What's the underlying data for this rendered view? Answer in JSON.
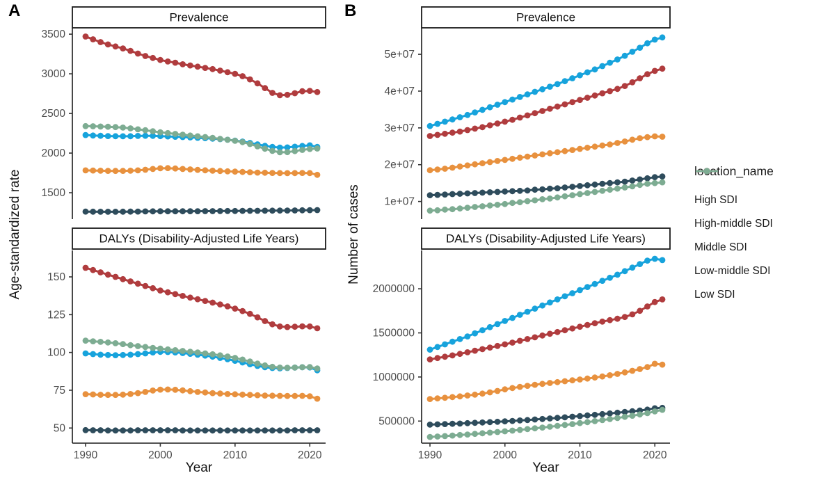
{
  "labels": {
    "panel_a": "A",
    "panel_b": "B"
  },
  "axes": {
    "a_y_title": "Age-standardized rate",
    "b_y_title": "Number of cases"
  },
  "legend": {
    "title": "location_name",
    "items": [
      {
        "label": "High SDI",
        "color": "#2e4c5c"
      },
      {
        "label": "High-middle SDI",
        "color": "#e8913e"
      },
      {
        "label": "Middle SDI",
        "color": "#17a3dc"
      },
      {
        "label": "Low-middle SDI",
        "color": "#b03c3e"
      },
      {
        "label": "Low SDI",
        "color": "#7dac92"
      }
    ]
  },
  "chart_data": {
    "type": "line",
    "x": {
      "label": "Year",
      "years": [
        1990,
        1991,
        1992,
        1993,
        1994,
        1995,
        1996,
        1997,
        1998,
        1999,
        2000,
        2001,
        2002,
        2003,
        2004,
        2005,
        2006,
        2007,
        2008,
        2009,
        2010,
        2011,
        2012,
        2013,
        2014,
        2015,
        2016,
        2017,
        2018,
        2019,
        2020,
        2021
      ],
      "ticks": [
        1990,
        2000,
        2010,
        2020
      ]
    },
    "panels": [
      {
        "id": "a-prevalence",
        "column": "A",
        "row": 0,
        "strip": "Prevalence",
        "ylabel": "Age-standardized rate",
        "ylim": [
          1167,
          3580
        ],
        "yticks": [
          {
            "v": 1500,
            "label": "1500"
          },
          {
            "v": 2000,
            "label": "2000"
          },
          {
            "v": 2500,
            "label": "2500"
          },
          {
            "v": 3000,
            "label": "3000"
          },
          {
            "v": 3500,
            "label": "3500"
          }
        ],
        "series": [
          {
            "name": "High SDI",
            "values": [
              1262,
              1261,
              1260,
              1260,
              1260,
              1261,
              1262,
              1263,
              1264,
              1265,
              1266,
              1266,
              1266,
              1266,
              1267,
              1267,
              1268,
              1268,
              1269,
              1270,
              1270,
              1271,
              1272,
              1272,
              1273,
              1274,
              1275,
              1276,
              1277,
              1278,
              1280,
              1281
            ]
          },
          {
            "name": "High-middle SDI",
            "values": [
              1782,
              1780,
              1778,
              1776,
              1775,
              1776,
              1778,
              1782,
              1790,
              1800,
              1808,
              1810,
              1806,
              1800,
              1794,
              1788,
              1783,
              1778,
              1774,
              1770,
              1766,
              1762,
              1758,
              1754,
              1752,
              1750,
              1748,
              1747,
              1748,
              1750,
              1748,
              1726
            ]
          },
          {
            "name": "Middle SDI",
            "values": [
              2228,
              2222,
              2218,
              2215,
              2213,
              2212,
              2213,
              2216,
              2218,
              2217,
              2214,
              2210,
              2206,
              2202,
              2198,
              2193,
              2188,
              2182,
              2176,
              2168,
              2158,
              2145,
              2128,
              2110,
              2092,
              2078,
              2070,
              2072,
              2080,
              2090,
              2098,
              2078
            ]
          },
          {
            "name": "Low-middle SDI",
            "values": [
              3470,
              3435,
              3400,
              3370,
              3345,
              3320,
              3290,
              3255,
              3225,
              3200,
              3175,
              3155,
              3140,
              3120,
              3105,
              3090,
              3075,
              3060,
              3040,
              3020,
              3000,
              2970,
              2930,
              2880,
              2820,
              2760,
              2730,
              2735,
              2755,
              2780,
              2785,
              2770
            ]
          },
          {
            "name": "Low SDI",
            "values": [
              2340,
              2338,
              2335,
              2332,
              2328,
              2322,
              2312,
              2300,
              2288,
              2275,
              2262,
              2252,
              2242,
              2232,
              2222,
              2212,
              2202,
              2192,
              2180,
              2168,
              2155,
              2138,
              2115,
              2085,
              2055,
              2028,
              2010,
              2012,
              2025,
              2040,
              2052,
              2058
            ]
          }
        ]
      },
      {
        "id": "a-dalys",
        "column": "A",
        "row": 1,
        "strip": "DALYs (Disability-Adjusted Life Years)",
        "ylabel": "Age-standardized rate",
        "ylim": [
          40,
          167.5
        ],
        "yticks": [
          {
            "v": 50,
            "label": "50"
          },
          {
            "v": 75,
            "label": "75"
          },
          {
            "v": 100,
            "label": "100"
          },
          {
            "v": 125,
            "label": "125"
          },
          {
            "v": 150,
            "label": "150"
          }
        ],
        "series": [
          {
            "name": "High SDI",
            "values": [
              48.6,
              48.5,
              48.5,
              48.4,
              48.4,
              48.4,
              48.4,
              48.5,
              48.5,
              48.5,
              48.5,
              48.5,
              48.5,
              48.4,
              48.4,
              48.4,
              48.4,
              48.4,
              48.4,
              48.4,
              48.4,
              48.4,
              48.4,
              48.4,
              48.4,
              48.4,
              48.4,
              48.4,
              48.5,
              48.5,
              48.5,
              48.5
            ]
          },
          {
            "name": "High-middle SDI",
            "values": [
              72.4,
              72.2,
              72.0,
              71.9,
              71.9,
              72.1,
              72.5,
              73.1,
              73.9,
              74.8,
              75.4,
              75.5,
              75.3,
              74.9,
              74.4,
              73.9,
              73.5,
              73.1,
              72.8,
              72.5,
              72.3,
              72.1,
              71.9,
              71.7,
              71.5,
              71.4,
              71.3,
              71.2,
              71.2,
              71.3,
              71.0,
              69.4
            ]
          },
          {
            "name": "Middle SDI",
            "values": [
              99.4,
              98.9,
              98.5,
              98.3,
              98.2,
              98.3,
              98.5,
              98.9,
              99.4,
              100.0,
              100.4,
              100.3,
              100.0,
              99.6,
              99.1,
              98.5,
              97.9,
              97.2,
              96.4,
              95.5,
              94.5,
              93.4,
              92.2,
              91.1,
              90.2,
              89.7,
              89.5,
              89.7,
              90.0,
              90.2,
              90.1,
              88.2
            ]
          },
          {
            "name": "Low-middle SDI",
            "values": [
              156.0,
              154.5,
              153.0,
              151.5,
              150.0,
              148.5,
              147.0,
              145.5,
              144.0,
              142.5,
              141.0,
              139.8,
              138.6,
              137.4,
              136.3,
              135.2,
              134.1,
              133.0,
              131.8,
              130.5,
              129.0,
              127.4,
              125.5,
              123.2,
              120.8,
              118.6,
              117.2,
              116.8,
              117.0,
              117.3,
              117.2,
              116.0
            ]
          },
          {
            "name": "Low SDI",
            "values": [
              107.8,
              107.4,
              107.0,
              106.6,
              106.1,
              105.5,
              104.8,
              104.2,
              103.6,
              103.0,
              102.5,
              102.0,
              101.5,
              101.0,
              100.5,
              100.0,
              99.4,
              98.8,
              98.1,
              97.3,
              96.4,
              95.3,
              94.0,
              92.6,
              91.4,
              90.5,
              90.0,
              89.9,
              90.0,
              90.2,
              90.3,
              89.4
            ]
          }
        ]
      },
      {
        "id": "b-prevalence",
        "column": "B",
        "row": 0,
        "strip": "Prevalence",
        "ylabel": "Number of cases",
        "ylim": [
          5200000,
          57200000
        ],
        "yticks": [
          {
            "v": 10000000,
            "label": "1e+07"
          },
          {
            "v": 20000000,
            "label": "2e+07"
          },
          {
            "v": 30000000,
            "label": "3e+07"
          },
          {
            "v": 40000000,
            "label": "4e+07"
          },
          {
            "v": 50000000,
            "label": "5e+07"
          }
        ],
        "series": [
          {
            "name": "High SDI",
            "values": [
              11700000,
              11800000,
              11900000,
              12000000,
              12100000,
              12200000,
              12300000,
              12400000,
              12500000,
              12600000,
              12700000,
              12800000,
              12900000,
              13000000,
              13200000,
              13300000,
              13500000,
              13600000,
              13800000,
              14000000,
              14200000,
              14400000,
              14600000,
              14800000,
              15000000,
              15200000,
              15400000,
              15700000,
              16000000,
              16300000,
              16600000,
              16800000
            ]
          },
          {
            "name": "High-middle SDI",
            "values": [
              18500000,
              18700000,
              18900000,
              19200000,
              19500000,
              19800000,
              20100000,
              20400000,
              20700000,
              21000000,
              21300000,
              21600000,
              21900000,
              22200000,
              22500000,
              22800000,
              23100000,
              23400000,
              23700000,
              24000000,
              24300000,
              24600000,
              24900000,
              25200000,
              25500000,
              25900000,
              26300000,
              26800000,
              27200000,
              27500000,
              27700000,
              27600000
            ]
          },
          {
            "name": "Middle SDI",
            "values": [
              30500000,
              31100000,
              31700000,
              32300000,
              32900000,
              33500000,
              34200000,
              34900000,
              35600000,
              36300000,
              37000000,
              37700000,
              38400000,
              39100000,
              39800000,
              40500000,
              41200000,
              41900000,
              42700000,
              43500000,
              44300000,
              45100000,
              45900000,
              46800000,
              47700000,
              48600000,
              49600000,
              50700000,
              51800000,
              53000000,
              54000000,
              54600000
            ]
          },
          {
            "name": "Low-middle SDI",
            "values": [
              27800000,
              28100000,
              28400000,
              28700000,
              29000000,
              29400000,
              29800000,
              30200000,
              30700000,
              31200000,
              31700000,
              32200000,
              32800000,
              33400000,
              34000000,
              34600000,
              35200000,
              35800000,
              36400000,
              37000000,
              37600000,
              38200000,
              38800000,
              39400000,
              40000000,
              40600000,
              41400000,
              42400000,
              43500000,
              44600000,
              45500000,
              46100000
            ]
          },
          {
            "name": "Low SDI",
            "values": [
              7500000,
              7600000,
              7800000,
              7900000,
              8100000,
              8300000,
              8500000,
              8700000,
              8900000,
              9100000,
              9300000,
              9600000,
              9800000,
              10100000,
              10300000,
              10600000,
              10800000,
              11100000,
              11400000,
              11700000,
              12000000,
              12300000,
              12600000,
              12900000,
              13200000,
              13500000,
              13800000,
              14100000,
              14500000,
              14800000,
              15000000,
              15200000
            ]
          }
        ]
      },
      {
        "id": "b-dalys",
        "column": "B",
        "row": 1,
        "strip": "DALYs (Disability-Adjusted Life Years)",
        "ylabel": "Number of cases",
        "ylim": [
          250000,
          2435000
        ],
        "yticks": [
          {
            "v": 500000,
            "label": "500000"
          },
          {
            "v": 1000000,
            "label": "1000000"
          },
          {
            "v": 1500000,
            "label": "1500000"
          },
          {
            "v": 2000000,
            "label": "2000000"
          }
        ],
        "series": [
          {
            "name": "High SDI",
            "values": [
              460000,
              463000,
              466000,
              469000,
              472000,
              476000,
              480000,
              484000,
              488000,
              492000,
              497000,
              502000,
              507000,
              512000,
              518000,
              524000,
              530000,
              536000,
              543000,
              550000,
              557000,
              564000,
              571000,
              579000,
              587000,
              595000,
              603000,
              611000,
              620000,
              630000,
              645000,
              650000
            ]
          },
          {
            "name": "High-middle SDI",
            "values": [
              750000,
              757000,
              764000,
              772000,
              780000,
              790000,
              800000,
              812000,
              826000,
              842000,
              860000,
              875000,
              888000,
              900000,
              912000,
              922000,
              932000,
              942000,
              952000,
              962000,
              972000,
              982000,
              994000,
              1006000,
              1020000,
              1035000,
              1052000,
              1070000,
              1090000,
              1112000,
              1150000,
              1140000
            ]
          },
          {
            "name": "Middle SDI",
            "values": [
              1310000,
              1340000,
              1370000,
              1400000,
              1430000,
              1460000,
              1495000,
              1530000,
              1565000,
              1600000,
              1635000,
              1670000,
              1705000,
              1740000,
              1775000,
              1810000,
              1845000,
              1880000,
              1915000,
              1950000,
              1985000,
              2020000,
              2055000,
              2090000,
              2125000,
              2160000,
              2200000,
              2240000,
              2280000,
              2320000,
              2340000,
              2325000
            ]
          },
          {
            "name": "Low-middle SDI",
            "values": [
              1200000,
              1215000,
              1230000,
              1245000,
              1262000,
              1280000,
              1298000,
              1316000,
              1334000,
              1352000,
              1370000,
              1390000,
              1410000,
              1430000,
              1450000,
              1470000,
              1490000,
              1510000,
              1530000,
              1550000,
              1570000,
              1590000,
              1610000,
              1628000,
              1645000,
              1660000,
              1680000,
              1710000,
              1750000,
              1800000,
              1850000,
              1880000
            ]
          },
          {
            "name": "Low SDI",
            "values": [
              320000,
              325000,
              330000,
              336000,
              342000,
              348000,
              355000,
              362000,
              369000,
              376000,
              384000,
              392000,
              400000,
              409000,
              418000,
              427000,
              436000,
              446000,
              456000,
              466000,
              477000,
              488000,
              499000,
              511000,
              523000,
              535000,
              548000,
              561000,
              575000,
              590000,
              610000,
              628000
            ]
          }
        ]
      }
    ]
  }
}
